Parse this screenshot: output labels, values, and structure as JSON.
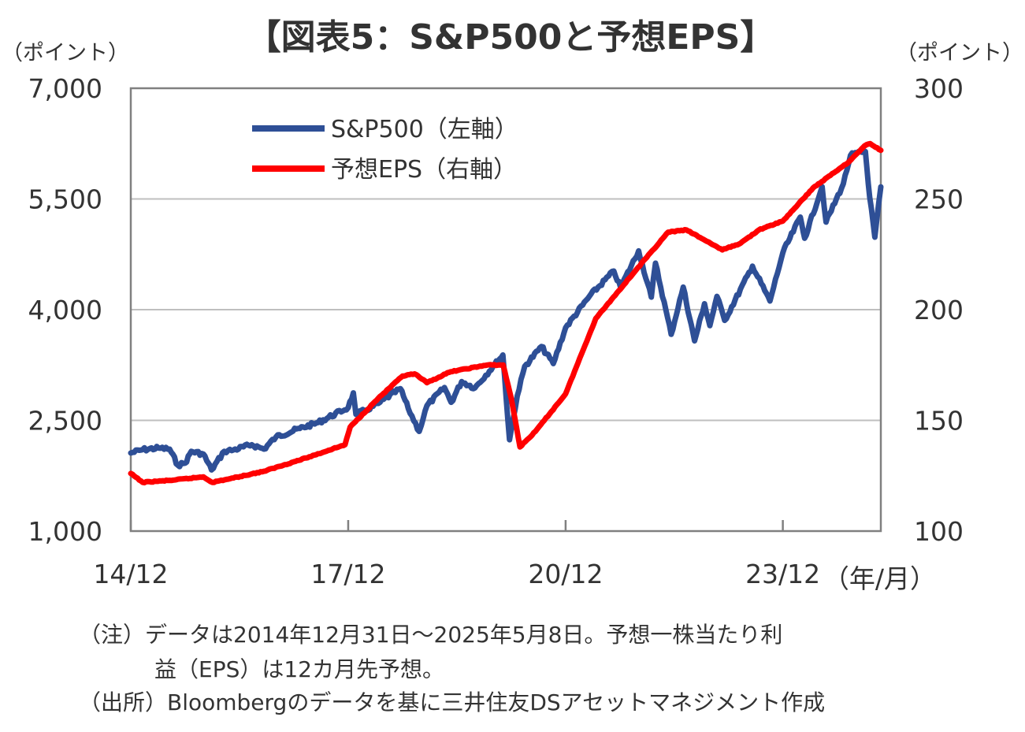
{
  "chart_data": {
    "type": "line",
    "title": "【図表5：S&P500と予想EPS】",
    "left_axis": {
      "unit": "（ポイント）",
      "ylim": [
        1000,
        7000
      ],
      "ticks": [
        "7,000",
        "5,500",
        "4,000",
        "2,500",
        "1,000"
      ],
      "tick_values": [
        7000,
        5500,
        4000,
        2500,
        1000
      ]
    },
    "right_axis": {
      "unit": "（ポイント）",
      "ylim": [
        100,
        300
      ],
      "ticks": [
        "300",
        "250",
        "200",
        "150",
        "100"
      ],
      "tick_values": [
        300,
        250,
        200,
        150,
        100
      ]
    },
    "x_axis": {
      "unit": "（年/月）",
      "xlim": [
        "2014-12-31",
        "2025-05-08"
      ],
      "ticks": [
        "14/12",
        "17/12",
        "20/12",
        "23/12"
      ],
      "tick_dates": [
        "2014-12-31",
        "2017-12-31",
        "2020-12-31",
        "2023-12-31"
      ]
    },
    "grid": "horizontal",
    "legend_position": "top-left",
    "series": [
      {
        "name": "S&P500（左軸）",
        "axis": "left",
        "color": "#2e4f96",
        "points": [
          [
            "2014-12-31",
            2058
          ],
          [
            "2015-03-01",
            2104
          ],
          [
            "2015-05-20",
            2125
          ],
          [
            "2015-07-15",
            2110
          ],
          [
            "2015-08-25",
            1893
          ],
          [
            "2015-10-01",
            1920
          ],
          [
            "2015-11-01",
            2080
          ],
          [
            "2016-01-01",
            2043
          ],
          [
            "2016-02-11",
            1829
          ],
          [
            "2016-04-15",
            2080
          ],
          [
            "2016-06-01",
            2100
          ],
          [
            "2016-09-01",
            2170
          ],
          [
            "2016-11-01",
            2110
          ],
          [
            "2017-01-01",
            2275
          ],
          [
            "2017-05-01",
            2390
          ],
          [
            "2017-08-01",
            2470
          ],
          [
            "2017-12-31",
            2674
          ],
          [
            "2018-01-26",
            2873
          ],
          [
            "2018-02-08",
            2581
          ],
          [
            "2018-04-01",
            2640
          ],
          [
            "2018-06-01",
            2730
          ],
          [
            "2018-09-20",
            2930
          ],
          [
            "2018-10-30",
            2660
          ],
          [
            "2018-12-24",
            2351
          ],
          [
            "2019-02-01",
            2700
          ],
          [
            "2019-04-30",
            2945
          ],
          [
            "2019-06-03",
            2744
          ],
          [
            "2019-07-26",
            3025
          ],
          [
            "2019-10-01",
            2940
          ],
          [
            "2019-12-31",
            3231
          ],
          [
            "2020-02-19",
            3386
          ],
          [
            "2020-03-23",
            2237
          ],
          [
            "2020-05-01",
            2830
          ],
          [
            "2020-06-08",
            3232
          ],
          [
            "2020-08-31",
            3500
          ],
          [
            "2020-10-30",
            3270
          ],
          [
            "2020-12-31",
            3756
          ],
          [
            "2021-04-30",
            4181
          ],
          [
            "2021-08-31",
            4523
          ],
          [
            "2021-10-04",
            4300
          ],
          [
            "2022-01-03",
            4796
          ],
          [
            "2022-03-08",
            4170
          ],
          [
            "2022-03-29",
            4630
          ],
          [
            "2022-06-16",
            3666
          ],
          [
            "2022-08-16",
            4305
          ],
          [
            "2022-10-12",
            3577
          ],
          [
            "2022-12-01",
            4080
          ],
          [
            "2022-12-28",
            3783
          ],
          [
            "2023-02-02",
            4180
          ],
          [
            "2023-03-13",
            3855
          ],
          [
            "2023-07-31",
            4589
          ],
          [
            "2023-10-27",
            4117
          ],
          [
            "2023-12-31",
            4770
          ],
          [
            "2024-03-28",
            5254
          ],
          [
            "2024-04-19",
            4967
          ],
          [
            "2024-07-16",
            5667
          ],
          [
            "2024-08-05",
            5186
          ],
          [
            "2024-10-31",
            5705
          ],
          [
            "2024-12-06",
            6090
          ],
          [
            "2025-02-19",
            6144
          ],
          [
            "2025-03-13",
            5521
          ],
          [
            "2025-04-08",
            4982
          ],
          [
            "2025-05-08",
            5663
          ]
        ]
      },
      {
        "name": "予想EPS（右軸）",
        "axis": "right",
        "color": "#ff0000",
        "points": [
          [
            "2014-12-31",
            126
          ],
          [
            "2015-03-01",
            122
          ],
          [
            "2015-08-01",
            123
          ],
          [
            "2016-01-01",
            124.5
          ],
          [
            "2016-02-15",
            122
          ],
          [
            "2016-06-01",
            124
          ],
          [
            "2016-11-01",
            127
          ],
          [
            "2017-06-01",
            133
          ],
          [
            "2017-12-15",
            139
          ],
          [
            "2018-01-10",
            147
          ],
          [
            "2018-06-01",
            160
          ],
          [
            "2018-10-01",
            170
          ],
          [
            "2018-12-01",
            171
          ],
          [
            "2019-02-01",
            167
          ],
          [
            "2019-06-01",
            172
          ],
          [
            "2019-12-01",
            175
          ],
          [
            "2020-02-20",
            175
          ],
          [
            "2020-04-01",
            160
          ],
          [
            "2020-05-15",
            138
          ],
          [
            "2020-08-01",
            145
          ],
          [
            "2020-12-31",
            162
          ],
          [
            "2021-06-01",
            196
          ],
          [
            "2021-12-31",
            219
          ],
          [
            "2022-06-01",
            235
          ],
          [
            "2022-09-01",
            236
          ],
          [
            "2022-12-31",
            230
          ],
          [
            "2023-03-01",
            227
          ],
          [
            "2023-06-01",
            230
          ],
          [
            "2023-09-01",
            236
          ],
          [
            "2023-12-31",
            240
          ],
          [
            "2024-06-01",
            255
          ],
          [
            "2024-12-01",
            267
          ],
          [
            "2025-02-15",
            274
          ],
          [
            "2025-03-15",
            275
          ],
          [
            "2025-05-08",
            272
          ]
        ]
      }
    ],
    "notes": [
      "（注）データは2014年12月31日～2025年5月8日。予想一株当たり利",
      "益（EPS）は12カ月先予想。",
      "（出所）Bloombergのデータを基に三井住友DSアセットマネジメント作成"
    ]
  }
}
